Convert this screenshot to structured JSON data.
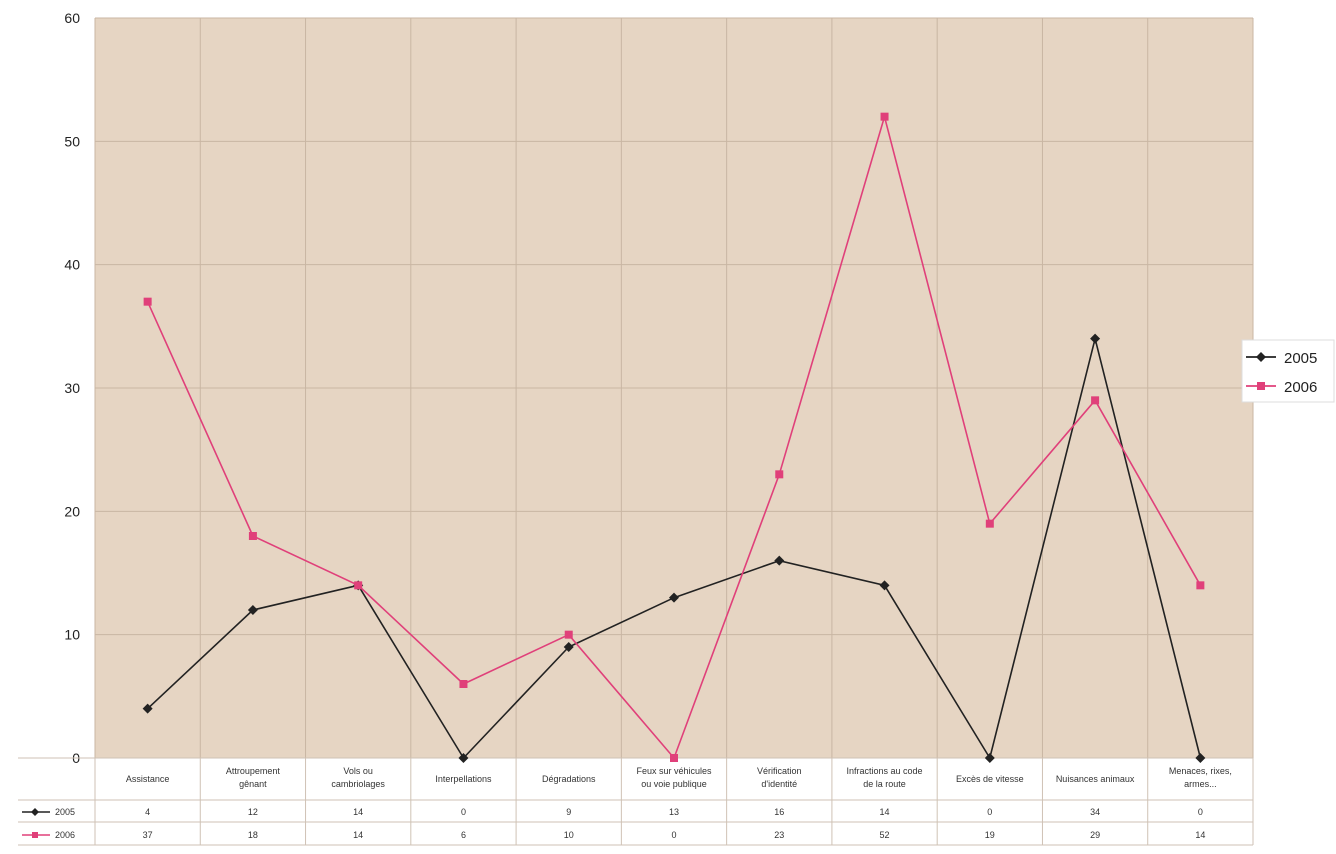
{
  "chart_data": {
    "type": "line",
    "title": "",
    "xlabel": "",
    "ylabel": "",
    "ylim": [
      0,
      60
    ],
    "yticks": [
      "0",
      "10",
      "20",
      "30",
      "40",
      "50",
      "60"
    ],
    "grid": true,
    "legend_position": "right",
    "categories": [
      [
        "Assistance"
      ],
      [
        "Attroupement",
        "gênant"
      ],
      [
        "Vols ou",
        "cambriolages"
      ],
      [
        "Interpellations"
      ],
      [
        "Dégradations"
      ],
      [
        "Feux sur véhicules",
        "ou voie publique"
      ],
      [
        "Vérification",
        "d'identité"
      ],
      [
        "Infractions au code",
        "de la route"
      ],
      [
        "Excès de vitesse"
      ],
      [
        "Nuisances animaux"
      ],
      [
        "Menaces, rixes,",
        "armes..."
      ]
    ],
    "series": [
      {
        "name": "2005",
        "color": "#222222",
        "marker": "diamond",
        "values": [
          4,
          12,
          14,
          0,
          9,
          13,
          16,
          14,
          0,
          34,
          0
        ]
      },
      {
        "name": "2006",
        "color": "#e0407a",
        "marker": "square",
        "values": [
          37,
          18,
          14,
          6,
          10,
          0,
          23,
          52,
          19,
          29,
          14
        ]
      }
    ],
    "colors": {
      "plot_background": "#e6d5c3",
      "grid": "#c9b6a3",
      "table_line": "#cfc2b5"
    }
  }
}
